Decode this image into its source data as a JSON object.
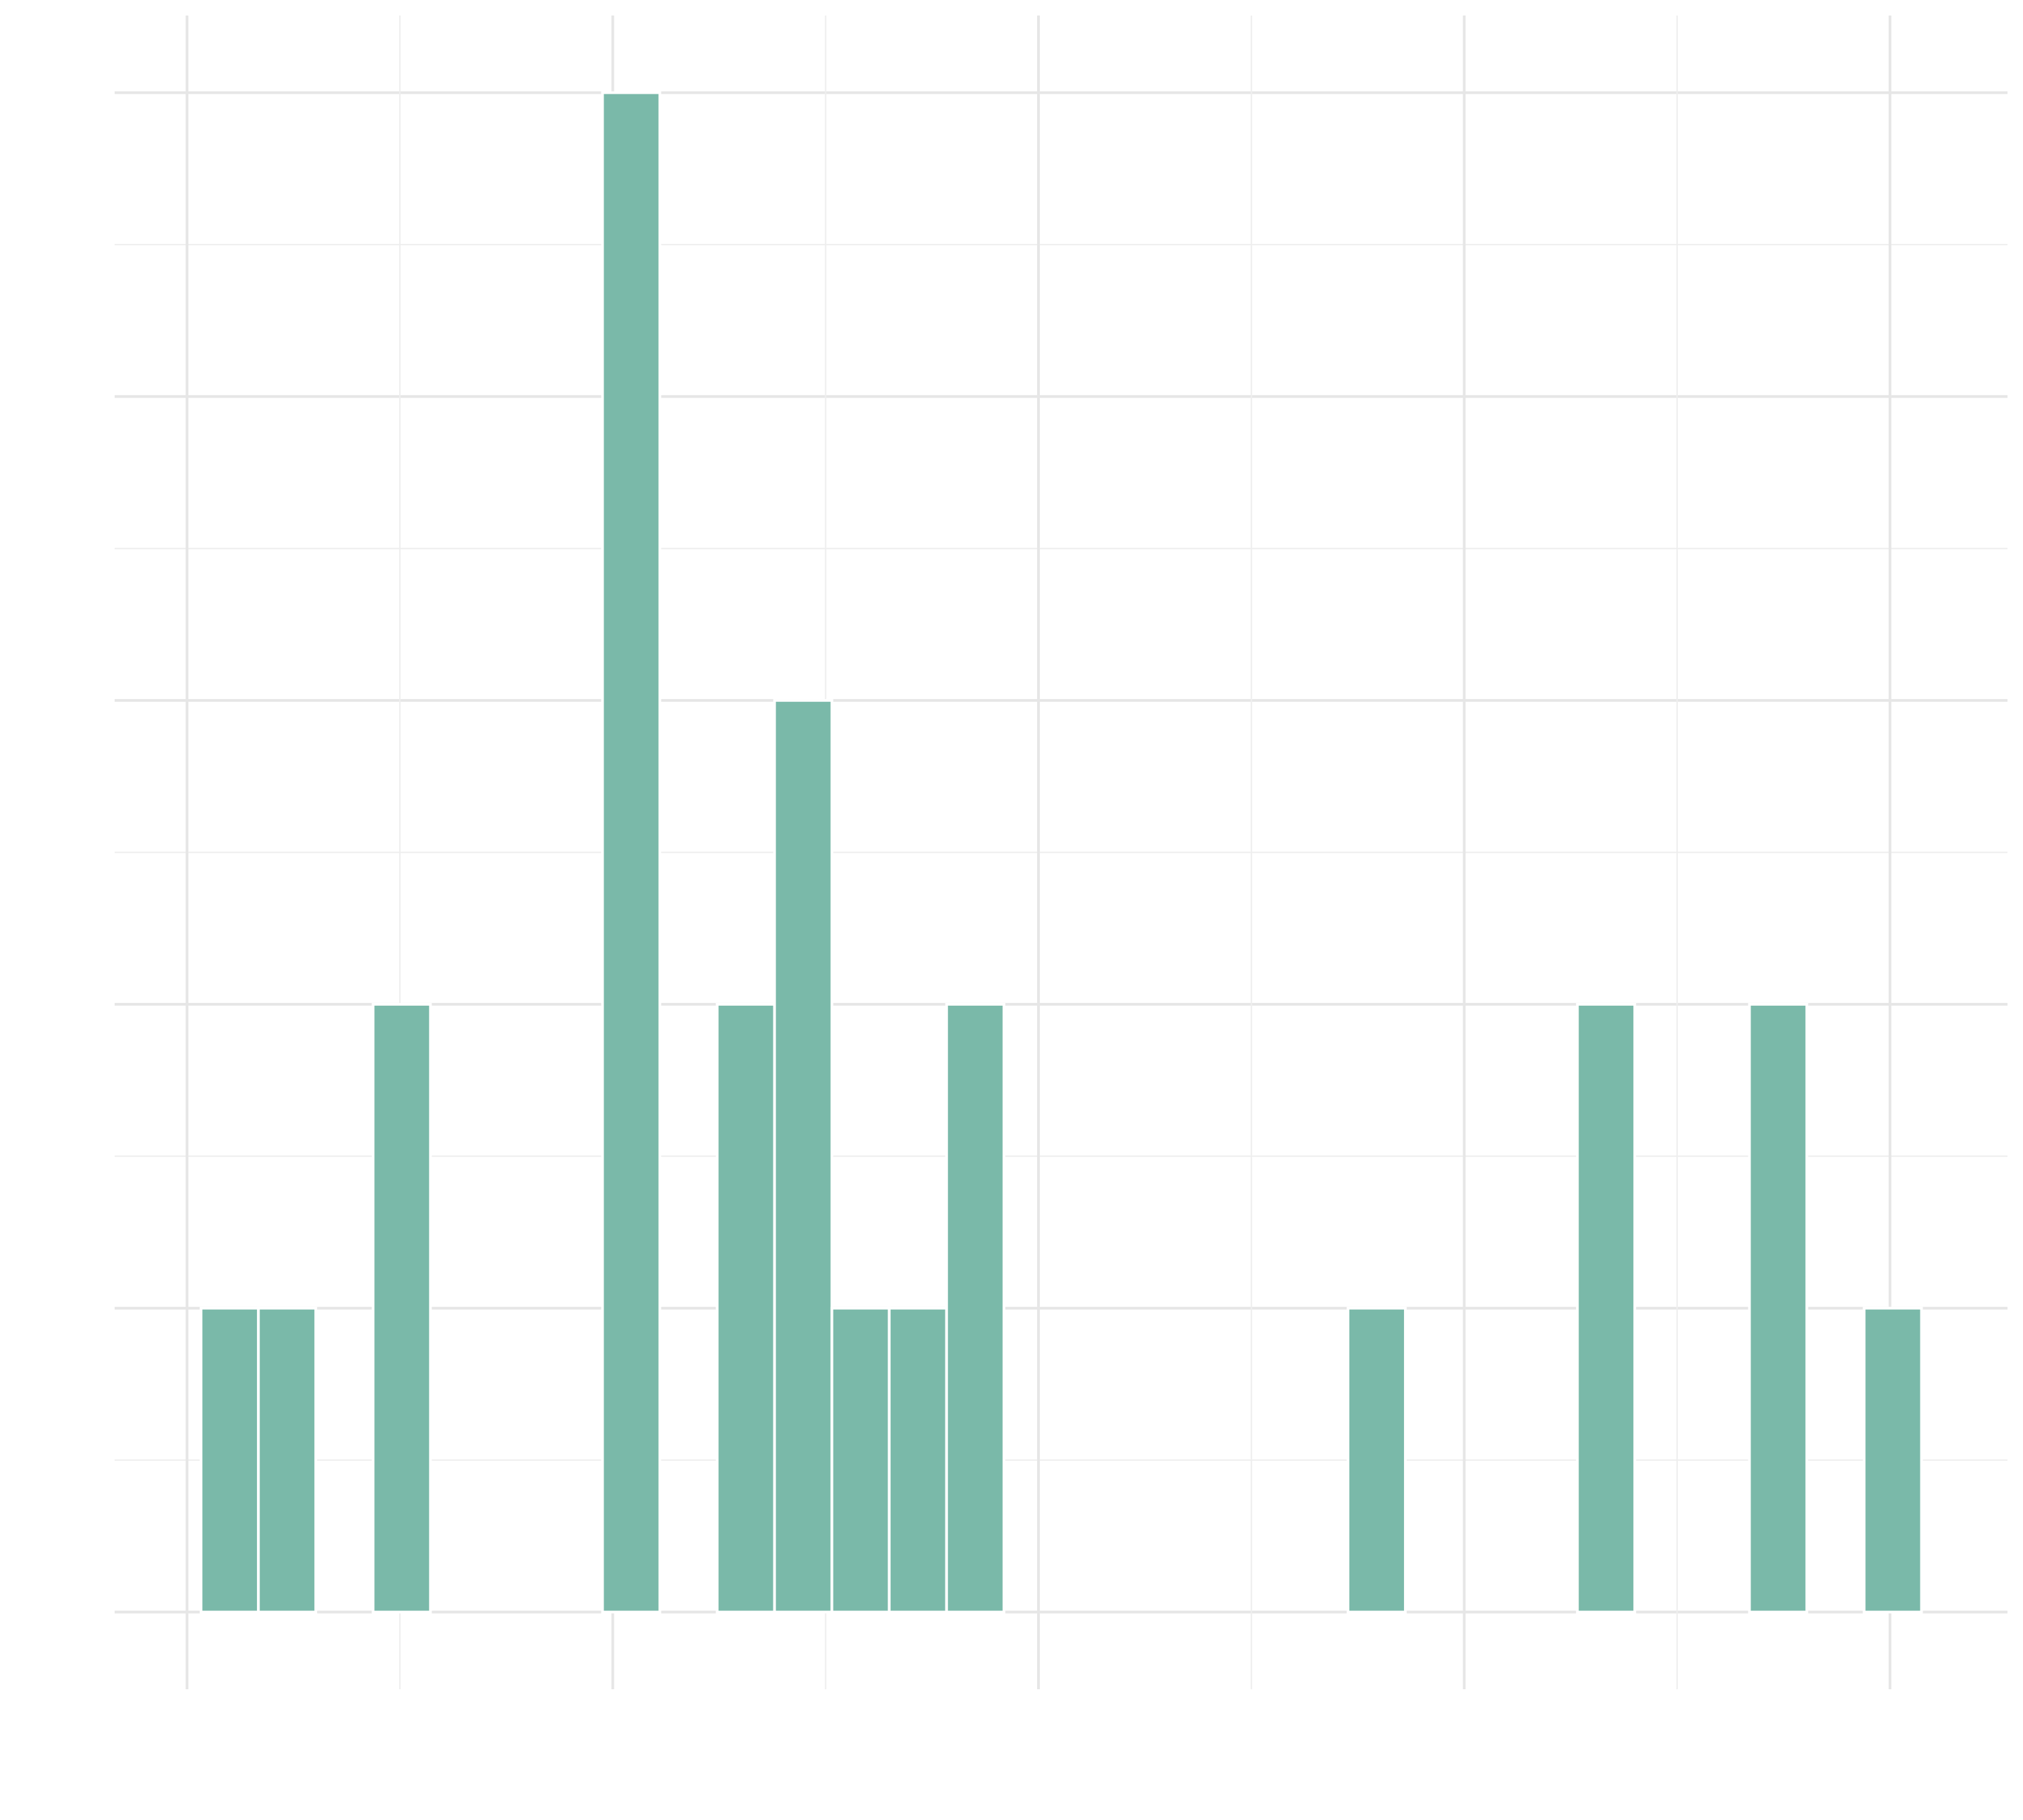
{
  "chart_data": {
    "type": "histogram",
    "bins": [
      0.033,
      0.1677,
      0.3024,
      0.4371,
      0.5718,
      0.7065,
      0.8412,
      0.9759,
      1.1106,
      1.2453,
      1.38,
      1.5147,
      1.6494,
      1.7841,
      1.9188,
      2.0535,
      2.1882,
      2.3229,
      2.4576,
      2.5923,
      2.727,
      2.8617,
      2.9964,
      3.1311,
      3.2658,
      3.4005,
      3.5352,
      3.6699,
      3.8046,
      3.9393,
      4.074
    ],
    "values": [
      1,
      1,
      0,
      2,
      0,
      0,
      0,
      5,
      0,
      2,
      3,
      1,
      1,
      2,
      0,
      0,
      0,
      0,
      0,
      0,
      1,
      0,
      0,
      0,
      2,
      0,
      0,
      2,
      0,
      1
    ],
    "color": "#7ab9a9",
    "xlim": [
      -0.17,
      4.276
    ],
    "ylim": [
      -0.254,
      5.254
    ],
    "xticks": [
      0,
      0.5,
      1,
      1.5,
      2,
      2.5,
      3,
      3.5,
      4
    ],
    "yticks": [
      0,
      0.5,
      1,
      1.5,
      2,
      2.5,
      3,
      3.5,
      4,
      4.5,
      5
    ],
    "grid": true
  }
}
